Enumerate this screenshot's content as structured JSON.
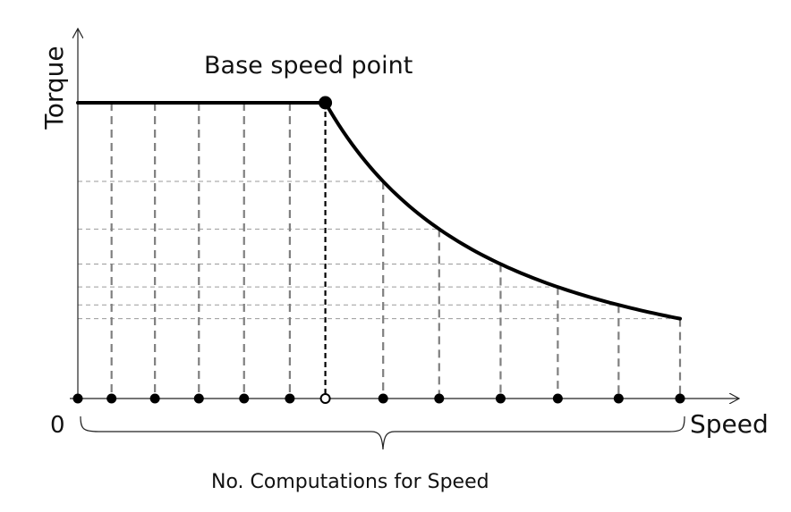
{
  "labels": {
    "y_axis": "Torque",
    "x_axis": "Speed",
    "origin": "0",
    "base_point": "Base speed point",
    "brace": "No. Computations for Speed"
  },
  "curve": {
    "constant_torque": 1.0,
    "base_speed": 0.411,
    "max_speed": 1.0,
    "end_torque": 0.27
  },
  "markers": {
    "x": [
      0.0,
      0.056,
      0.128,
      0.201,
      0.276,
      0.352,
      0.411,
      0.507,
      0.6,
      0.702,
      0.797,
      0.898,
      1.0
    ],
    "hollow_index": 6
  },
  "colors": {
    "curve": "#000000",
    "dashed": "#7f7f7f",
    "grid": "#9a9a9a"
  }
}
